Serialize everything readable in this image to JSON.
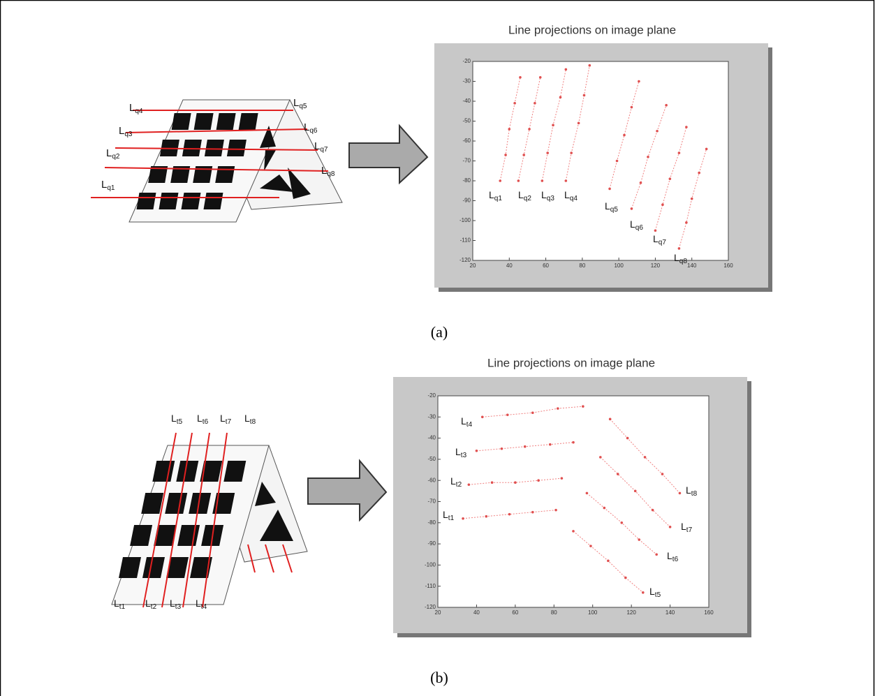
{
  "figure_a": {
    "diagram_labels": [
      {
        "main": "L",
        "sub": "q1"
      },
      {
        "main": "L",
        "sub": "q2"
      },
      {
        "main": "L",
        "sub": "q3"
      },
      {
        "main": "L",
        "sub": "q4"
      },
      {
        "main": "L",
        "sub": "q5"
      },
      {
        "main": "L",
        "sub": "q6"
      },
      {
        "main": "L",
        "sub": "q7"
      },
      {
        "main": "L",
        "sub": "q8"
      }
    ],
    "plot": {
      "title": "Line projections on image plane",
      "xlim": [
        20,
        160
      ],
      "ylim": [
        -120,
        -20
      ],
      "xticks": [
        20,
        40,
        60,
        80,
        100,
        120,
        140,
        160
      ],
      "yticks": [
        -20,
        -30,
        -40,
        -50,
        -60,
        -70,
        -80,
        -90,
        -100,
        -110,
        -120
      ],
      "lines": [
        {
          "label": {
            "main": "L",
            "sub": "q1"
          },
          "x": [
            35,
            38,
            40,
            43,
            46
          ],
          "y": [
            -80,
            -67,
            -54,
            -41,
            -28
          ]
        },
        {
          "label": {
            "main": "L",
            "sub": "q2"
          },
          "x": [
            45,
            48,
            51,
            54,
            57
          ],
          "y": [
            -80,
            -67,
            -54,
            -41,
            -28
          ]
        },
        {
          "label": {
            "main": "L",
            "sub": "q3"
          },
          "x": [
            58,
            61,
            64,
            68,
            71
          ],
          "y": [
            -80,
            -66,
            -52,
            -38,
            -24
          ]
        },
        {
          "label": {
            "main": "L",
            "sub": "q4"
          },
          "x": [
            71,
            74,
            78,
            81,
            84
          ],
          "y": [
            -80,
            -66,
            -51,
            -37,
            -22
          ]
        },
        {
          "label": {
            "main": "L",
            "sub": "q5"
          },
          "x": [
            95,
            99,
            103,
            107,
            111
          ],
          "y": [
            -84,
            -70,
            -57,
            -43,
            -30
          ]
        },
        {
          "label": {
            "main": "L",
            "sub": "q6"
          },
          "x": [
            107,
            112,
            116,
            121,
            126
          ],
          "y": [
            -94,
            -81,
            -68,
            -55,
            -42
          ]
        },
        {
          "label": {
            "main": "L",
            "sub": "q7"
          },
          "x": [
            120,
            124,
            128,
            133,
            137
          ],
          "y": [
            -105,
            -92,
            -79,
            -66,
            -53
          ]
        },
        {
          "label": {
            "main": "L",
            "sub": "q8"
          },
          "x": [
            133,
            137,
            140,
            144,
            148
          ],
          "y": [
            -114,
            -101,
            -89,
            -76,
            -64
          ]
        }
      ]
    },
    "caption": "(a)"
  },
  "figure_b": {
    "diagram_labels": [
      {
        "main": "L",
        "sub": "t1"
      },
      {
        "main": "L",
        "sub": "t2"
      },
      {
        "main": "L",
        "sub": "t3"
      },
      {
        "main": "L",
        "sub": "t4"
      },
      {
        "main": "L",
        "sub": "t5"
      },
      {
        "main": "L",
        "sub": "t6"
      },
      {
        "main": "L",
        "sub": "t7"
      },
      {
        "main": "L",
        "sub": "t8"
      }
    ],
    "plot": {
      "title": "Line projections on image plane",
      "xlim": [
        20,
        160
      ],
      "ylim": [
        -120,
        -20
      ],
      "xticks": [
        20,
        40,
        60,
        80,
        100,
        120,
        140,
        160
      ],
      "yticks": [
        -20,
        -30,
        -40,
        -50,
        -60,
        -70,
        -80,
        -90,
        -100,
        -110,
        -120
      ],
      "lines": [
        {
          "label": {
            "main": "L",
            "sub": "t1"
          },
          "x": [
            33,
            45,
            57,
            69,
            81
          ],
          "y": [
            -78,
            -77,
            -76,
            -75,
            -74
          ]
        },
        {
          "label": {
            "main": "L",
            "sub": "t2"
          },
          "x": [
            36,
            48,
            60,
            72,
            84
          ],
          "y": [
            -62,
            -61,
            -61,
            -60,
            -59
          ]
        },
        {
          "label": {
            "main": "L",
            "sub": "t3"
          },
          "x": [
            40,
            53,
            65,
            78,
            90
          ],
          "y": [
            -46,
            -45,
            -44,
            -43,
            -42
          ]
        },
        {
          "label": {
            "main": "L",
            "sub": "t4"
          },
          "x": [
            43,
            56,
            69,
            82,
            95
          ],
          "y": [
            -30,
            -29,
            -28,
            -26,
            -25
          ]
        },
        {
          "label": {
            "main": "L",
            "sub": "t5"
          },
          "x": [
            90,
            99,
            108,
            117,
            126
          ],
          "y": [
            -84,
            -91,
            -98,
            -106,
            -113
          ]
        },
        {
          "label": {
            "main": "L",
            "sub": "t6"
          },
          "x": [
            97,
            106,
            115,
            124,
            133
          ],
          "y": [
            -66,
            -73,
            -80,
            -88,
            -95
          ]
        },
        {
          "label": {
            "main": "L",
            "sub": "t7"
          },
          "x": [
            104,
            113,
            122,
            131,
            140
          ],
          "y": [
            -49,
            -57,
            -65,
            -74,
            -82
          ]
        },
        {
          "label": {
            "main": "L",
            "sub": "t8"
          },
          "x": [
            109,
            118,
            127,
            136,
            145
          ],
          "y": [
            -31,
            -40,
            -49,
            -57,
            -66
          ]
        }
      ]
    },
    "caption": "(b)"
  }
}
